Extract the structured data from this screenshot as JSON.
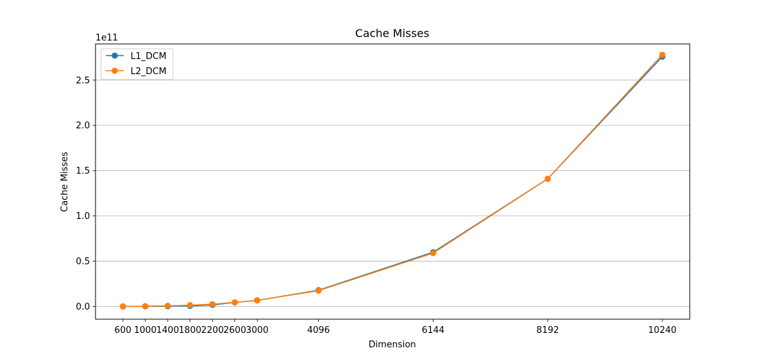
{
  "chart_data": {
    "type": "line",
    "title": "Cache Misses",
    "xlabel": "Dimension",
    "ylabel": "Cache Misses",
    "y_offset_label": "1e11",
    "x": [
      600,
      1000,
      1400,
      1800,
      2200,
      2600,
      3000,
      4096,
      6144,
      8192,
      10240
    ],
    "x_tick_labels": [
      "600",
      "1000",
      "1400",
      "1800",
      "2200",
      "2600",
      "3000",
      "4096",
      "6144",
      "8192",
      "10240"
    ],
    "y_ticks": [
      0.0,
      0.5,
      1.0,
      1.5,
      2.0,
      2.5
    ],
    "y_tick_labels": [
      "0.0",
      "0.5",
      "1.0",
      "1.5",
      "2.0",
      "2.5"
    ],
    "y_scale_note": "values in units of 1e11",
    "xlim": [
      110,
      10730
    ],
    "ylim": [
      -0.14,
      2.9
    ],
    "grid": "horizontal",
    "legend_position": "top-left",
    "series": [
      {
        "name": "L1_DCM",
        "color": "#1f77b4",
        "values": [
          0.001,
          0.002,
          0.003,
          0.006,
          0.018,
          0.045,
          0.068,
          0.18,
          0.6,
          1.41,
          2.76
        ]
      },
      {
        "name": "L2_DCM",
        "color": "#ff7f0e",
        "values": [
          0.001,
          0.003,
          0.008,
          0.014,
          0.025,
          0.046,
          0.068,
          0.175,
          0.59,
          1.41,
          2.78
        ]
      }
    ]
  }
}
